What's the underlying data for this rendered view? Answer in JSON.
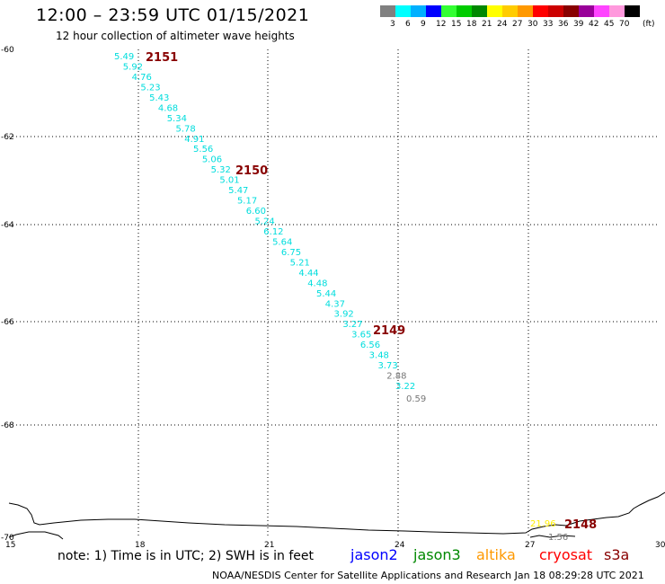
{
  "header": {
    "title": "12:00 – 23:59 UTC 01/15/2021",
    "subtitle": "12 hour collection of altimeter wave heights"
  },
  "legend": {
    "colors": [
      "#808080",
      "#00ffff",
      "#00b0ff",
      "#0000ff",
      "#33ff33",
      "#00cc00",
      "#008800",
      "#ffff00",
      "#ffcc00",
      "#ff9900",
      "#ff0000",
      "#cc0000",
      "#880000",
      "#990099",
      "#ff44ff",
      "#ff99dd",
      "#000000"
    ],
    "labels": [
      "3",
      "6",
      "9",
      "12",
      "15",
      "18",
      "21",
      "24",
      "27",
      "30",
      "33",
      "36",
      "39",
      "42",
      "45",
      "70"
    ],
    "unit": "(ft)"
  },
  "map": {
    "x_ticks": [
      "15",
      "18",
      "21",
      "24",
      "27",
      "30"
    ],
    "y_ticks": [
      "-60",
      "-62",
      "-64",
      "-66",
      "-68",
      "-70"
    ],
    "track_labels": [
      "2151",
      "2150",
      "2149",
      "2148"
    ],
    "cyan_values": [
      "5.49",
      "5.92",
      "4.76",
      "5.23",
      "5.43",
      "4.68",
      "5.34",
      "5.78",
      "4.91",
      "5.56",
      "5.06",
      "5.32",
      "5.01",
      "5.47",
      "5.17",
      "6.60",
      "5.24",
      "6.12",
      "5.64",
      "6.75",
      "5.21",
      "4.44",
      "4.48",
      "5.44",
      "4.37",
      "3.92",
      "3.27",
      "3.65",
      "6.56",
      "3.48",
      "3.73",
      "2.88",
      "3.22",
      "0.59"
    ],
    "bottom_values": [
      "21.96",
      "1.56"
    ]
  },
  "footer": {
    "note": "note: 1) Time is in UTC; 2) SWH is in feet",
    "credit": "NOAA/NESDIS Center for Satellite Applications and Research   Jan 18 08:29:28 UTC 2021",
    "satellites": [
      {
        "name": "jason2",
        "color": "#0000ff"
      },
      {
        "name": "jason3",
        "color": "#008800"
      },
      {
        "name": "altika",
        "color": "#ff9900"
      },
      {
        "name": "cryosat",
        "color": "#ff0000"
      },
      {
        "name": "s3a",
        "color": "#880000"
      }
    ]
  }
}
